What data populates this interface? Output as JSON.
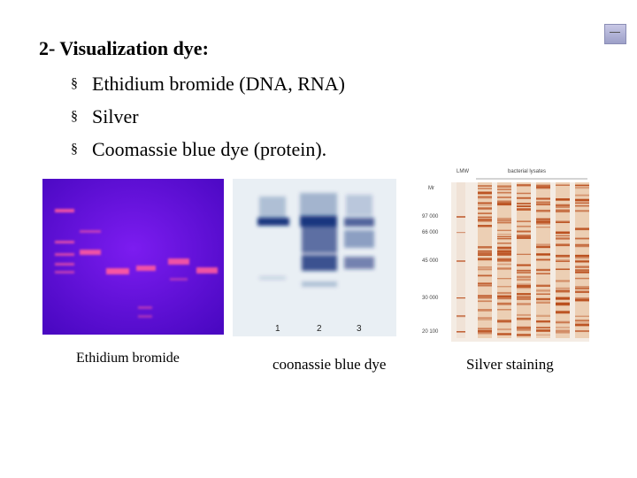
{
  "slide": {
    "title": "2- Visualization dye:",
    "bullets": [
      "Ethidium bromide (DNA, RNA)",
      "Silver",
      "Coomassie blue dye (protein)."
    ],
    "bullet_marker": "§"
  },
  "figures": [
    {
      "caption": "Ethidium bromide"
    },
    {
      "caption": "coonassie blue dye",
      "lane_labels": [
        "1",
        "2",
        "3"
      ]
    },
    {
      "caption": "Silver staining",
      "header_left": "LMW",
      "header_right": "bacterial lysates",
      "marker_label": "Mr",
      "mw_markers": [
        "97 000",
        "66 000",
        "45 000",
        "30 000",
        "20 100"
      ]
    }
  ],
  "colors": {
    "gel_purple": "#6a12d8",
    "band_pink": "#ff5aa0",
    "coomassie_blue": "#0d2a78",
    "silver_band": "#b84a18"
  }
}
